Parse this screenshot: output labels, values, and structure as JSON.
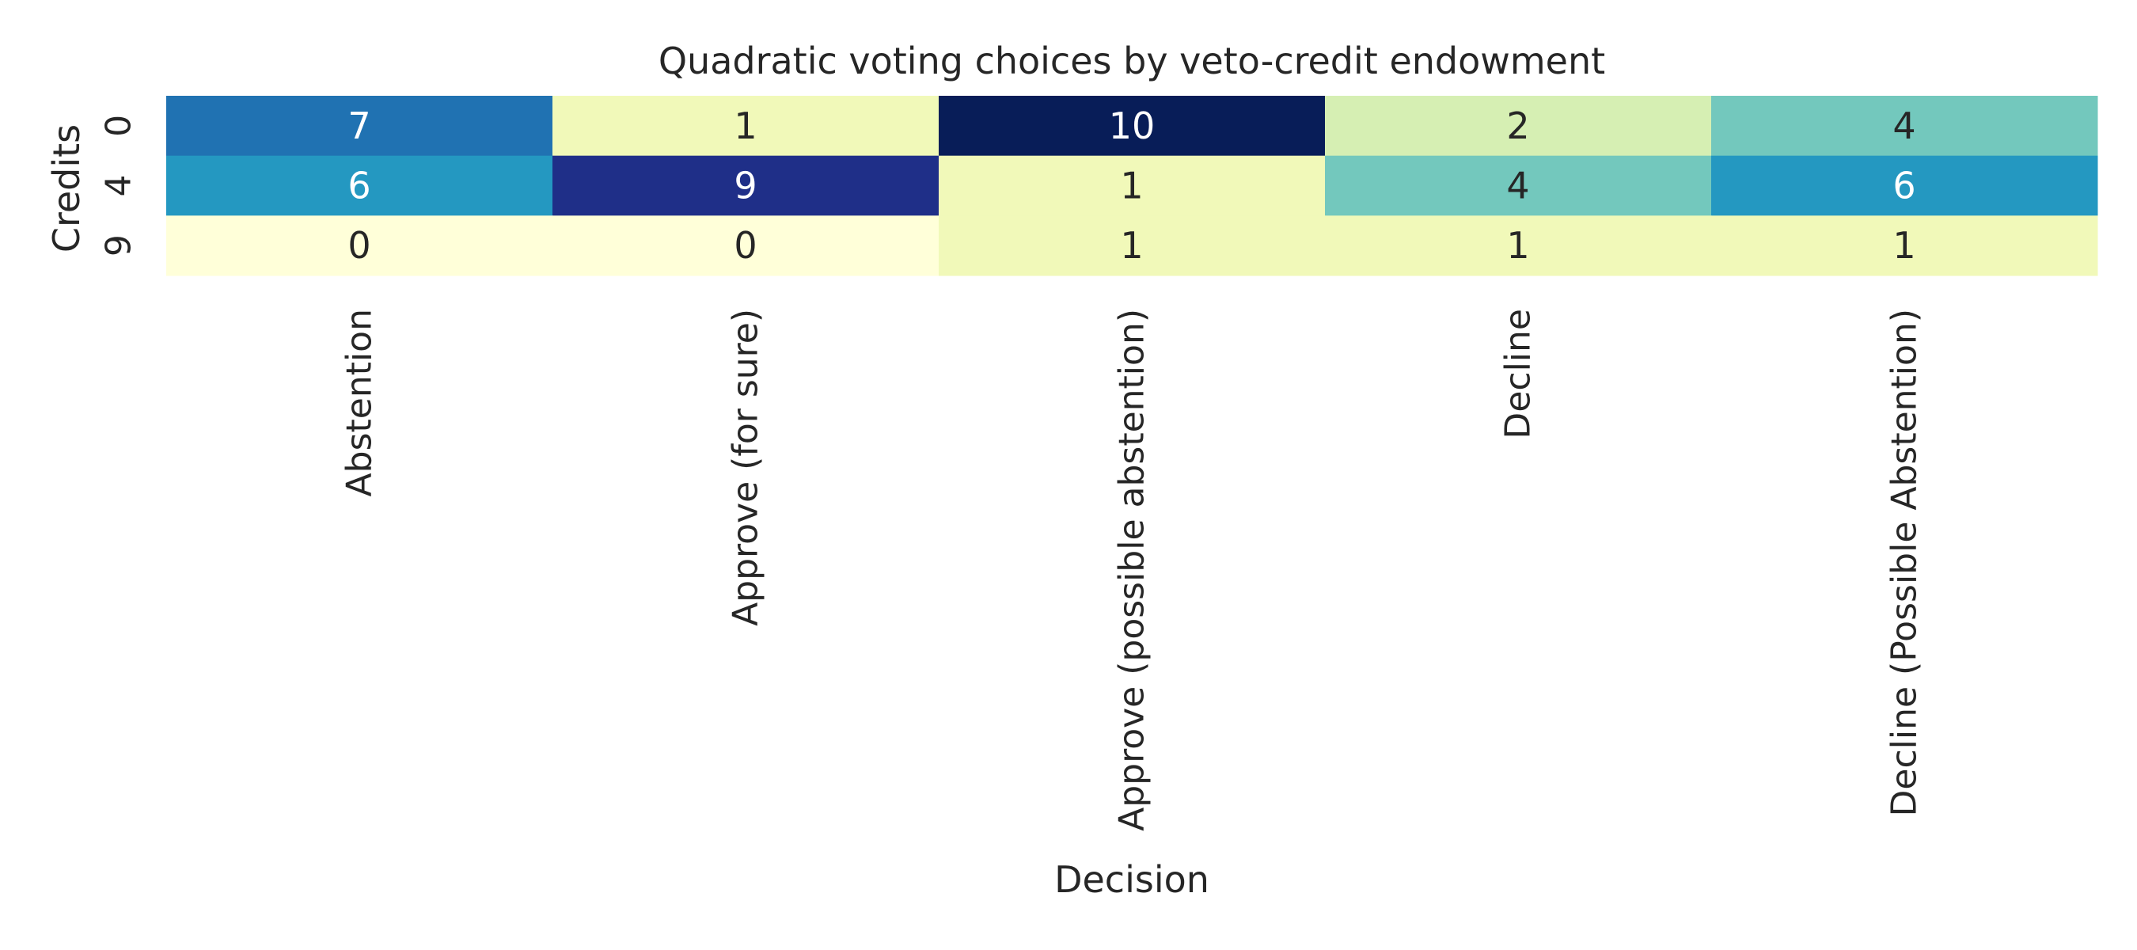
{
  "chart_data": {
    "type": "heatmap",
    "title": "Quadratic voting choices by veto-credit endowment",
    "xlabel": "Decision",
    "ylabel": "Credits",
    "x_categories": [
      "Abstention",
      "Approve (for sure)",
      "Approve (possible abstention)",
      "Decline",
      "Decline (Possible Abstention)"
    ],
    "y_categories": [
      "0",
      "4",
      "9"
    ],
    "values": [
      [
        7,
        1,
        10,
        2,
        4
      ],
      [
        6,
        9,
        1,
        4,
        6
      ],
      [
        0,
        0,
        1,
        1,
        1
      ]
    ],
    "value_range": [
      0,
      10
    ],
    "colormap": "YlGnBu",
    "colorbar": false,
    "grid": false,
    "annotations": true
  }
}
